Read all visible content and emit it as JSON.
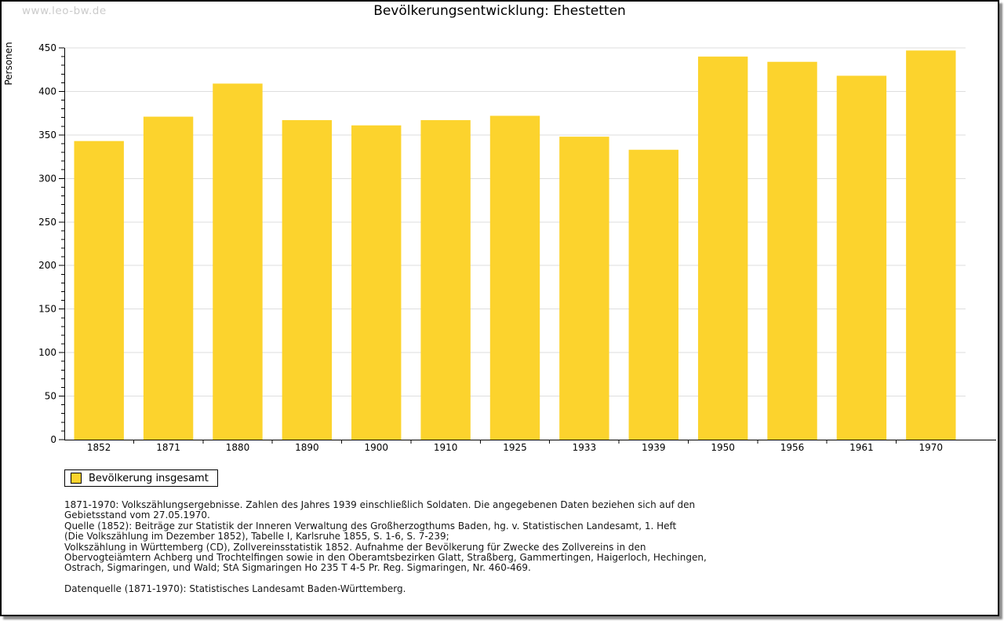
{
  "watermark": "www.leo-bw.de",
  "title": "Bevölkerungsentwicklung: Ehestetten",
  "legend": {
    "label": "Bevölkerung insgesamt"
  },
  "footnotes": {
    "lines": [
      "1871-1970: Volkszählungsergebnisse. Zahlen des Jahres 1939 einschließlich Soldaten. Die angegebenen Daten beziehen sich auf den",
      "Gebietsstand vom 27.05.1970.",
      "Quelle (1852): Beiträge zur Statistik der Inneren Verwaltung des Großherzogthums Baden, hg. v. Statistischen Landesamt, 1. Heft",
      "(Die Volkszählung im Dezember 1852), Tabelle I, Karlsruhe 1855, S. 1-6, S. 7-239;",
      "Volkszählung in Württemberg (CD), Zollvereinsstatistik 1852. Aufnahme der Bevölkerung für Zwecke des Zollvereins in den",
      "Obervogteiämtern Achberg und Trochtelfingen sowie in den Oberamtsbezirken Glatt, Straßberg, Gammertingen, Haigerloch, Hechingen,",
      "Ostrach, Sigmaringen, und Wald; StA Sigmaringen Ho 235 T 4-5 Pr. Reg. Sigmaringen, Nr. 460-469."
    ],
    "datasource": "Datenquelle (1871-1970): Statistisches Landesamt Baden-Württemberg."
  },
  "colors": {
    "bar": "#fcd32d",
    "grid": "#dedede",
    "axis": "#000000",
    "watermark": "#cbcbcb"
  },
  "chart_data": {
    "type": "bar",
    "title": "Bevölkerungsentwicklung: Ehestetten",
    "categories": [
      "1852",
      "1871",
      "1880",
      "1890",
      "1900",
      "1910",
      "1925",
      "1933",
      "1939",
      "1950",
      "1956",
      "1961",
      "1970"
    ],
    "values": [
      343,
      371,
      409,
      367,
      361,
      367,
      372,
      348,
      333,
      440,
      434,
      418,
      447
    ],
    "series_name": "Bevölkerung insgesamt",
    "xlabel": "",
    "ylabel": "Personen",
    "ylim": [
      0,
      450
    ],
    "ytick_major": 50,
    "ytick_minor": 10,
    "grid": true,
    "legend_position": "bottom-left",
    "bar_color": "#fcd32d"
  }
}
